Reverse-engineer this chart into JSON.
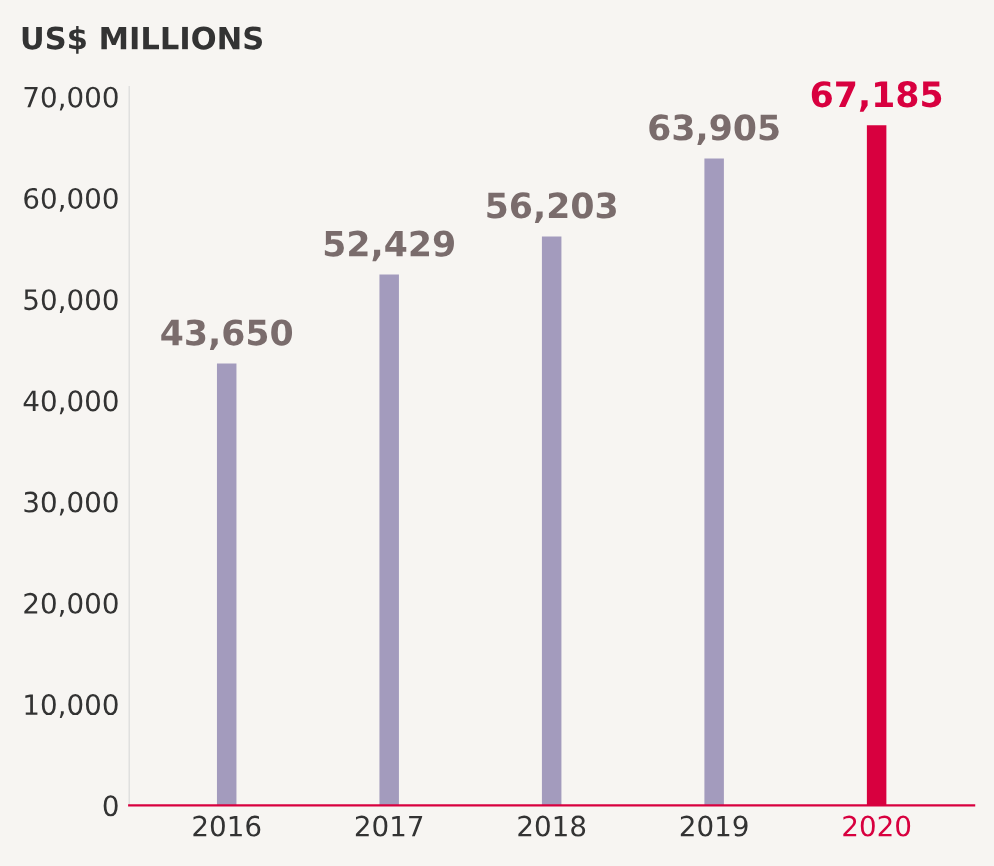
{
  "chart_data": {
    "type": "bar",
    "ylabel": "US$ MILLIONS",
    "categories": [
      "2016",
      "2017",
      "2018",
      "2019",
      "2020"
    ],
    "values": [
      43650,
      52429,
      56203,
      63905,
      67185
    ],
    "colors": [
      "#a39bbd",
      "#a39bbd",
      "#a39bbd",
      "#a39bbd",
      "#d8003f"
    ],
    "value_labels": [
      "43,650",
      "52,429",
      "56,203",
      "63,905",
      "67,185"
    ],
    "ylim": [
      0,
      71000
    ],
    "yticks": [
      {
        "value": 0,
        "label": "0"
      },
      {
        "value": 10000,
        "label": "10,000"
      },
      {
        "value": 20000,
        "label": "20,000"
      },
      {
        "value": 30000,
        "label": "30,000"
      },
      {
        "value": 40000,
        "label": "40,000"
      },
      {
        "value": 50000,
        "label": "50,000"
      },
      {
        "value": 60000,
        "label": "60,000"
      },
      {
        "value": 70000,
        "label": "70,000"
      }
    ],
    "grid": false,
    "legend": false
  }
}
